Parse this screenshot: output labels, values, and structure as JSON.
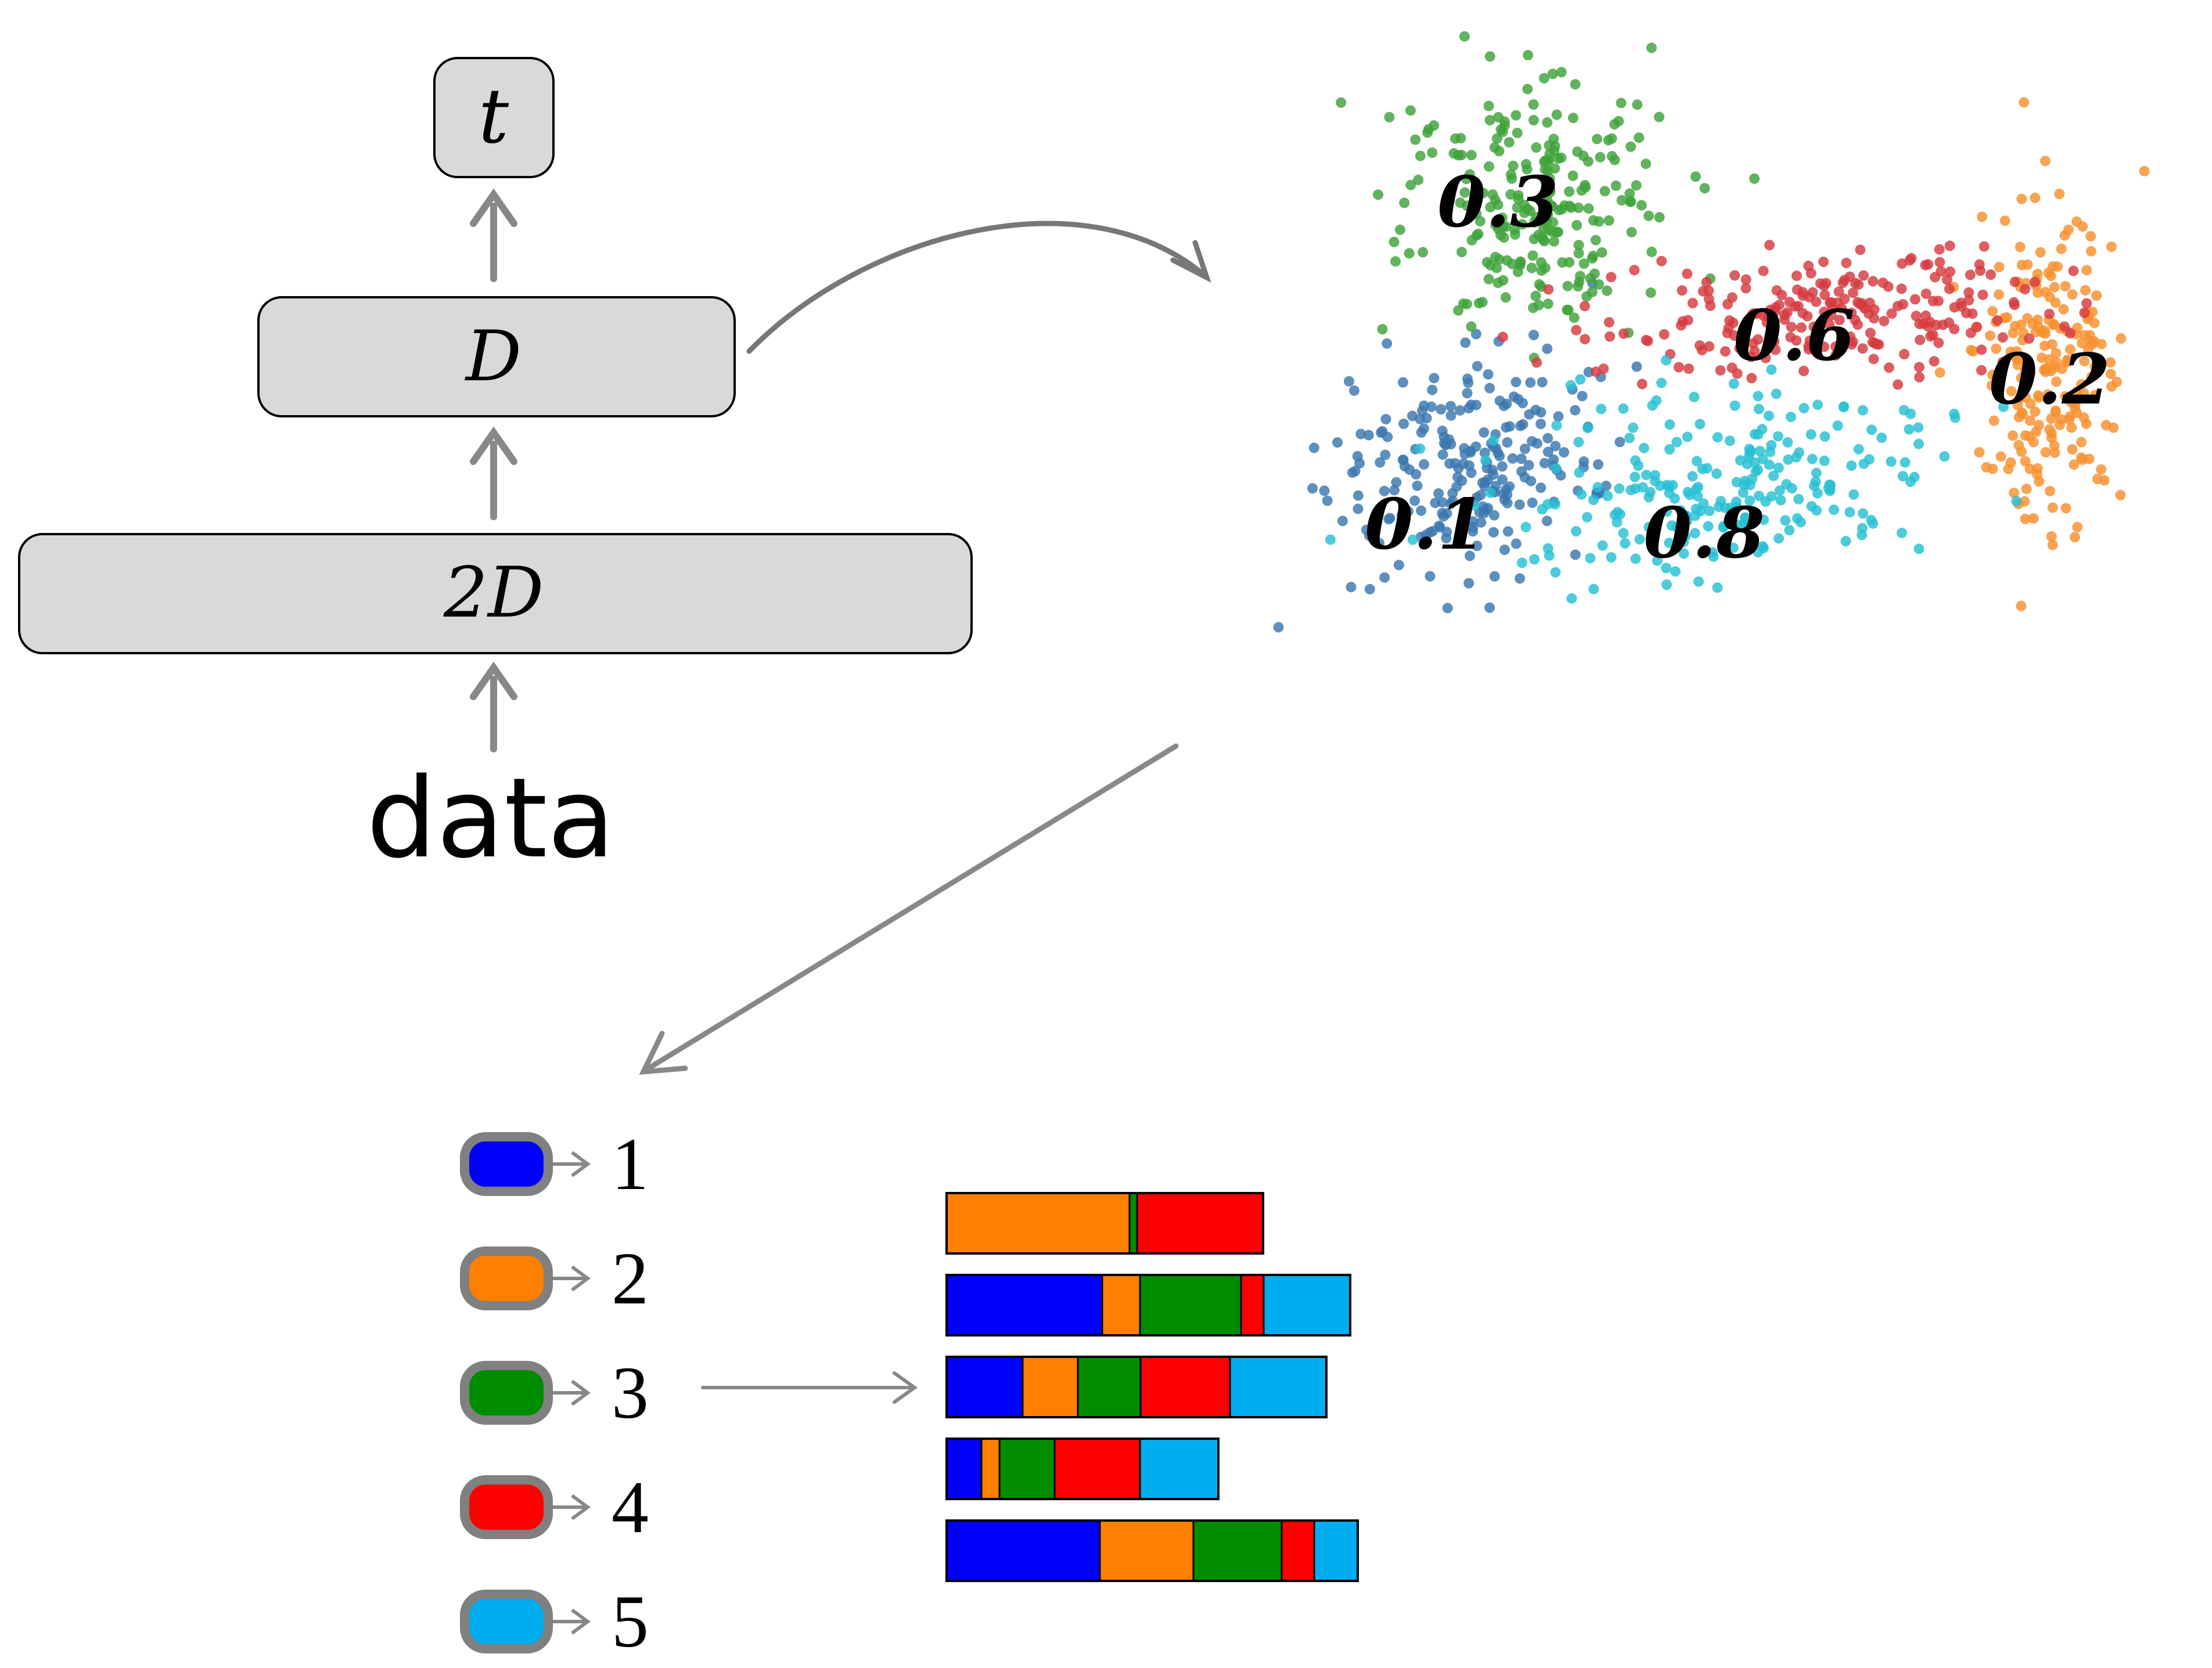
{
  "network": {
    "input_label": "data",
    "layer_wide_label": "2D",
    "layer_narrow_label": "D",
    "output_label": "t"
  },
  "scatter": {
    "clusters": [
      {
        "name": "blue",
        "color": "#3b78b0",
        "label": "0.1"
      },
      {
        "name": "orange",
        "color": "#f7902e",
        "label": "0.2"
      },
      {
        "name": "green",
        "color": "#3fa23a",
        "label": "0.3"
      },
      {
        "name": "red",
        "color": "#d63a3f",
        "label": "0.6"
      },
      {
        "name": "cyan",
        "color": "#27c0d3",
        "label": "0.8"
      }
    ]
  },
  "legend": {
    "items": [
      {
        "color": "#0000ff",
        "label": "1"
      },
      {
        "color": "#ff8000",
        "label": "2"
      },
      {
        "color": "#008c00",
        "label": "3"
      },
      {
        "color": "#ff0000",
        "label": "4"
      },
      {
        "color": "#00adef",
        "label": "5"
      }
    ]
  },
  "bars": {
    "rows": [
      [
        {
          "class": 2,
          "value": 0.315
        },
        {
          "class": 3,
          "value": 0.013
        },
        {
          "class": 4,
          "value": 0.217
        }
      ],
      [
        {
          "class": 1,
          "value": 0.268
        },
        {
          "class": 2,
          "value": 0.065
        },
        {
          "class": 3,
          "value": 0.174
        },
        {
          "class": 4,
          "value": 0.039
        },
        {
          "class": 5,
          "value": 0.149
        }
      ],
      [
        {
          "class": 1,
          "value": 0.131
        },
        {
          "class": 2,
          "value": 0.095
        },
        {
          "class": 3,
          "value": 0.108
        },
        {
          "class": 4,
          "value": 0.154
        },
        {
          "class": 5,
          "value": 0.166
        }
      ],
      [
        {
          "class": 1,
          "value": 0.06
        },
        {
          "class": 2,
          "value": 0.031
        },
        {
          "class": 3,
          "value": 0.095
        },
        {
          "class": 4,
          "value": 0.147
        },
        {
          "class": 5,
          "value": 0.135
        }
      ],
      [
        {
          "class": 1,
          "value": 0.264
        },
        {
          "class": 2,
          "value": 0.161
        },
        {
          "class": 3,
          "value": 0.152
        },
        {
          "class": 4,
          "value": 0.056
        },
        {
          "class": 5,
          "value": 0.075
        }
      ]
    ]
  },
  "colors": {
    "arrow": "#888888",
    "box_fill": "#d9d9d9",
    "legend_border": "#808080"
  }
}
